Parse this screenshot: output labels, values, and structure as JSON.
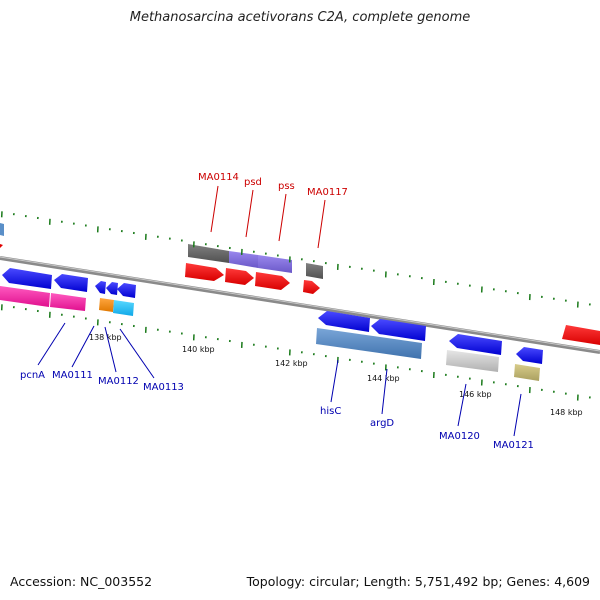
{
  "title": "Methanosarcina acetivorans C2A, complete genome",
  "footer": {
    "accession": "Accession: NC_003552",
    "summary": "Topology: circular; Length: 5,751,492 bp; Genes: 4,609"
  },
  "colors": {
    "forward_label": "#cc0000",
    "reverse_label": "#0000b0",
    "tick": "#1a7a1a",
    "backbone": "#8a8a8a"
  },
  "ruler": [
    "138 kbp",
    "140 kbp",
    "142 kbp",
    "144 kbp",
    "146 kbp",
    "148 kbp"
  ],
  "forward_labels": [
    "MA0114",
    "psd",
    "pss",
    "MA0117"
  ],
  "reverse_labels": [
    "pcnA",
    "MA0111",
    "MA0112",
    "MA0113",
    "hisC",
    "argD",
    "MA0120",
    "MA0121"
  ]
}
